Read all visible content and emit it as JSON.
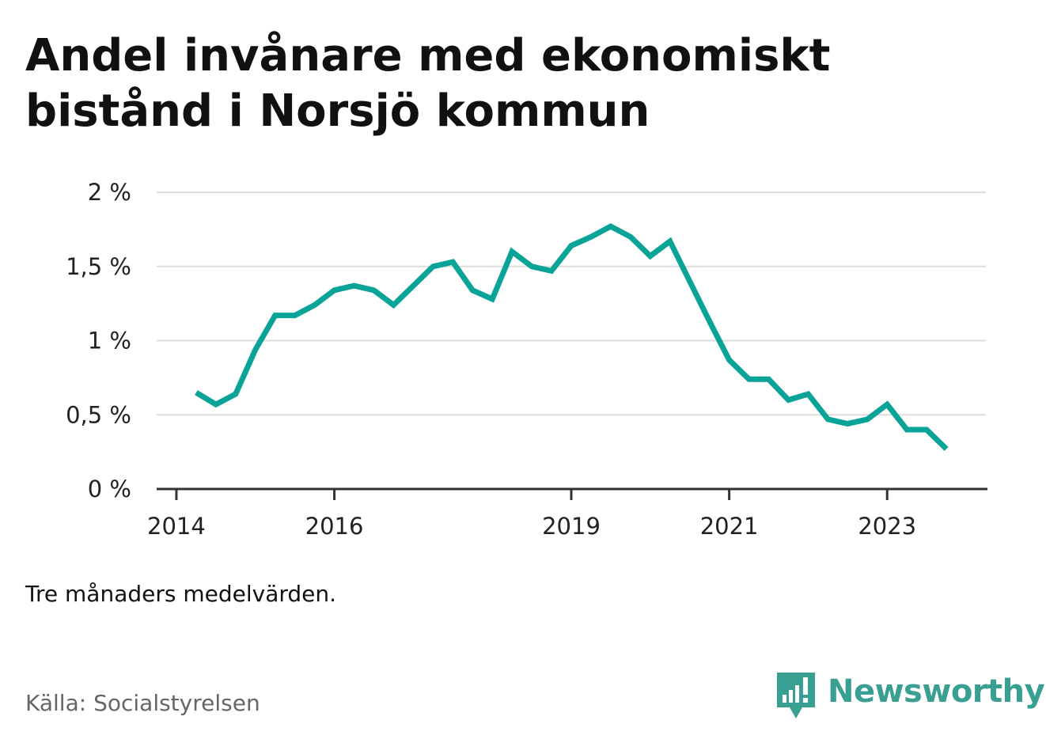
{
  "header": {
    "title": "Andel invånare med ekonomiskt bistånd i Norsjö kommun"
  },
  "footer": {
    "note": "Tre månaders medelvärden.",
    "source": "Källa: Socialstyrelsen",
    "brand": "Newsworthy"
  },
  "colors": {
    "line": "#0aa398",
    "grid": "#dddddd",
    "axis": "#333333",
    "brand": "#3a9f93"
  },
  "chart_data": {
    "type": "line",
    "title": "Andel invånare med ekonomiskt bistånd i Norsjö kommun",
    "xlabel": "",
    "ylabel": "",
    "ylim": [
      0,
      2
    ],
    "yticks": [
      0,
      0.5,
      1,
      1.5,
      2
    ],
    "ytick_labels": [
      "0 %",
      "0,5 %",
      "1 %",
      "1,5 %",
      "2 %"
    ],
    "xticks": [
      2014,
      2016,
      2019,
      2021,
      2023
    ],
    "xtick_labels": [
      "2014",
      "2016",
      "2019",
      "2021",
      "2023"
    ],
    "grid": true,
    "series": [
      {
        "x": [
          2014.25,
          2014.5,
          2014.75,
          2015.0,
          2015.25,
          2015.5,
          2015.75,
          2016.0,
          2016.25,
          2016.5,
          2016.75,
          2017.0,
          2017.25,
          2017.5,
          2017.75,
          2018.0,
          2018.25,
          2018.5,
          2018.75,
          2019.0,
          2019.25,
          2019.5,
          2019.75,
          2020.0,
          2020.25,
          2020.5,
          2020.75,
          2021.0,
          2021.25,
          2021.5,
          2021.75,
          2022.0,
          2022.25,
          2022.5,
          2022.75,
          2023.0,
          2023.25,
          2023.5,
          2023.75
        ],
        "values": [
          0.65,
          0.57,
          0.64,
          0.94,
          1.17,
          1.17,
          1.24,
          1.34,
          1.37,
          1.34,
          1.24,
          1.37,
          1.5,
          1.53,
          1.34,
          1.28,
          1.6,
          1.5,
          1.47,
          1.64,
          1.7,
          1.77,
          1.7,
          1.57,
          1.67,
          1.4,
          1.13,
          0.87,
          0.74,
          0.74,
          0.6,
          0.64,
          0.47,
          0.44,
          0.47,
          0.57,
          0.4,
          0.4,
          0.27
        ]
      }
    ]
  }
}
